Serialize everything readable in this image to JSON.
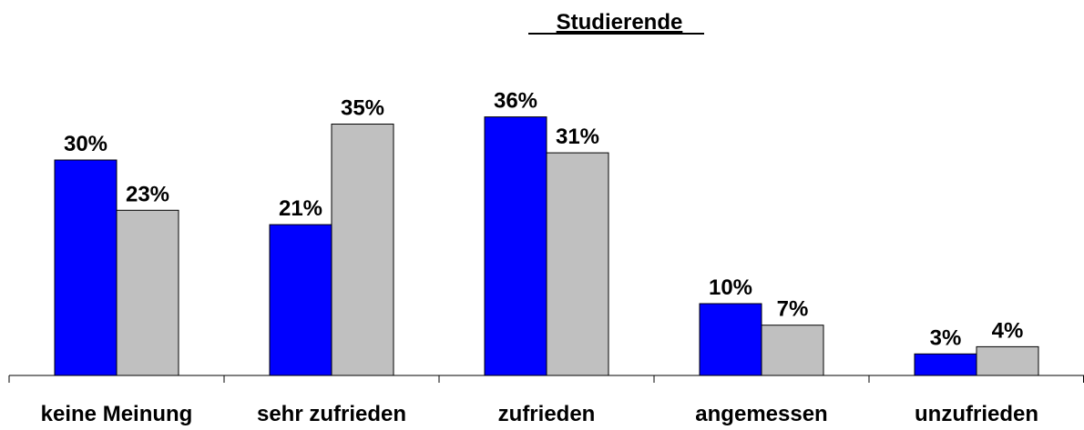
{
  "chart_data": {
    "type": "bar",
    "title": "Studierende",
    "categories": [
      "keine Meinung",
      "sehr zufrieden",
      "zufrieden",
      "angemessen",
      "unzufrieden"
    ],
    "series": [
      {
        "color": "#0000ff",
        "values": [
          30,
          21,
          36,
          10,
          3
        ],
        "value_labels": [
          "30%",
          "21%",
          "36%",
          "10%",
          "3%"
        ]
      },
      {
        "color": "#c0c0c0",
        "values": [
          23,
          35,
          31,
          7,
          4
        ],
        "value_labels": [
          "23%",
          "35%",
          "31%",
          "7%",
          "4%"
        ]
      }
    ],
    "ylim": [
      0,
      40
    ]
  }
}
